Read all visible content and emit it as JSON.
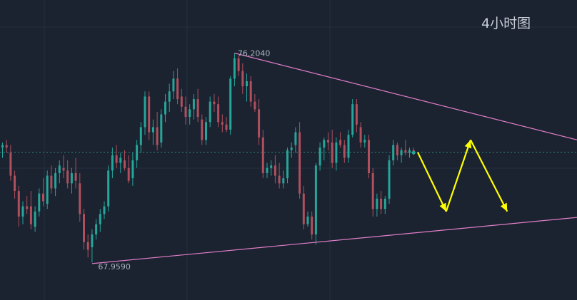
{
  "header": {
    "timeframe_label": "4小时图"
  },
  "colors": {
    "background": "#1b2230",
    "grid": "#26303f",
    "up_candle": "#26a69a",
    "down_candle": "#b0505e",
    "trendline": "#e07fc8",
    "projection_arrow": "#ffff00",
    "price_line": "#2e8b7c",
    "label_text": "#aab3bf"
  },
  "chart_data": {
    "type": "candlestick",
    "title": "",
    "timeframe": "4小时图",
    "ylim": [
      66.7,
      78.0
    ],
    "price_labels": {
      "high": "76.2040",
      "low": "67.9590"
    },
    "current_price": 72.32,
    "grid": true,
    "ohlc": [
      [
        72.5,
        72.7,
        72.1,
        72.6
      ],
      [
        72.6,
        72.8,
        72.3,
        72.5
      ],
      [
        72.3,
        72.6,
        71.2,
        71.4
      ],
      [
        71.4,
        71.6,
        70.5,
        70.8
      ],
      [
        70.8,
        71.0,
        69.4,
        69.8
      ],
      [
        69.8,
        70.4,
        69.5,
        70.2
      ],
      [
        70.2,
        70.6,
        69.9,
        70.1
      ],
      [
        70.2,
        70.8,
        69.3,
        69.5
      ],
      [
        69.4,
        70.2,
        69.2,
        70.0
      ],
      [
        70.0,
        70.9,
        69.8,
        70.7
      ],
      [
        70.7,
        71.3,
        70.2,
        70.4
      ],
      [
        70.3,
        71.6,
        70.1,
        71.4
      ],
      [
        71.4,
        71.8,
        70.7,
        70.9
      ],
      [
        70.9,
        71.7,
        70.6,
        71.5
      ],
      [
        71.5,
        72.0,
        71.1,
        71.8
      ],
      [
        71.7,
        72.2,
        71.3,
        71.6
      ],
      [
        71.6,
        72.0,
        70.9,
        71.1
      ],
      [
        71.1,
        71.7,
        70.7,
        71.5
      ],
      [
        71.5,
        72.1,
        70.9,
        71.2
      ],
      [
        71.1,
        71.5,
        69.6,
        69.9
      ],
      [
        69.9,
        70.1,
        68.5,
        68.8
      ],
      [
        68.8,
        69.1,
        68.2,
        68.5
      ],
      [
        68.6,
        69.3,
        68.0,
        69.1
      ],
      [
        69.1,
        69.7,
        68.9,
        69.5
      ],
      [
        69.5,
        70.1,
        69.2,
        69.9
      ],
      [
        69.9,
        70.4,
        69.7,
        70.2
      ],
      [
        70.2,
        71.8,
        70.0,
        71.6
      ],
      [
        71.6,
        72.5,
        71.3,
        72.2
      ],
      [
        72.2,
        72.6,
        71.7,
        71.9
      ],
      [
        71.9,
        72.3,
        71.5,
        72.1
      ],
      [
        72.0,
        72.4,
        71.6,
        71.7
      ],
      [
        71.7,
        72.2,
        71.1,
        71.2
      ],
      [
        71.3,
        72.3,
        71.0,
        72.0
      ],
      [
        72.0,
        72.8,
        71.7,
        72.6
      ],
      [
        72.6,
        73.5,
        72.3,
        73.3
      ],
      [
        73.3,
        74.7,
        73.0,
        74.5
      ],
      [
        74.5,
        74.7,
        72.8,
        73.1
      ],
      [
        73.1,
        73.6,
        72.6,
        73.3
      ],
      [
        73.3,
        73.9,
        72.4,
        72.6
      ],
      [
        72.7,
        74.0,
        72.5,
        73.8
      ],
      [
        73.8,
        74.6,
        73.5,
        74.3
      ],
      [
        74.3,
        75.0,
        73.9,
        74.7
      ],
      [
        74.7,
        75.5,
        74.4,
        75.2
      ],
      [
        75.2,
        75.6,
        74.2,
        74.4
      ],
      [
        74.5,
        74.8,
        73.9,
        74.1
      ],
      [
        74.1,
        74.5,
        73.4,
        73.7
      ],
      [
        73.7,
        74.2,
        73.4,
        74.0
      ],
      [
        74.0,
        74.6,
        73.6,
        74.4
      ],
      [
        74.4,
        74.8,
        73.5,
        73.7
      ],
      [
        73.6,
        73.8,
        72.6,
        72.8
      ],
      [
        72.8,
        73.7,
        72.6,
        73.5
      ],
      [
        73.5,
        74.5,
        73.3,
        74.3
      ],
      [
        74.3,
        74.6,
        73.9,
        74.2
      ],
      [
        74.2,
        74.5,
        73.3,
        73.5
      ],
      [
        73.5,
        73.8,
        73.1,
        73.4
      ],
      [
        73.4,
        73.7,
        73.1,
        73.2
      ],
      [
        73.2,
        75.3,
        73.0,
        75.2
      ],
      [
        75.2,
        76.2,
        74.9,
        76.0
      ],
      [
        76.0,
        76.1,
        75.3,
        75.5
      ],
      [
        75.5,
        75.8,
        74.6,
        74.9
      ],
      [
        74.9,
        75.4,
        74.3,
        75.1
      ],
      [
        75.1,
        75.3,
        74.1,
        74.3
      ],
      [
        74.3,
        74.6,
        73.9,
        74.0
      ],
      [
        74.0,
        74.4,
        72.6,
        72.9
      ],
      [
        72.9,
        73.2,
        71.3,
        71.5
      ],
      [
        71.5,
        71.9,
        71.3,
        71.7
      ],
      [
        71.7,
        72.0,
        71.4,
        71.8
      ],
      [
        71.8,
        72.2,
        71.1,
        71.4
      ],
      [
        71.4,
        71.9,
        70.9,
        71.1
      ],
      [
        71.1,
        71.6,
        70.9,
        71.3
      ],
      [
        71.3,
        72.5,
        71.1,
        72.4
      ],
      [
        72.4,
        72.7,
        72.1,
        72.5
      ],
      [
        72.6,
        73.3,
        72.3,
        73.1
      ],
      [
        73.1,
        73.5,
        70.5,
        70.7
      ],
      [
        70.7,
        71.0,
        69.3,
        69.5
      ],
      [
        69.5,
        70.0,
        69.4,
        69.8
      ],
      [
        69.8,
        70.0,
        68.9,
        69.1
      ],
      [
        69.1,
        71.9,
        68.7,
        71.8
      ],
      [
        71.8,
        72.7,
        71.6,
        72.5
      ],
      [
        72.5,
        72.9,
        72.0,
        72.8
      ],
      [
        72.8,
        73.1,
        72.4,
        72.7
      ],
      [
        72.7,
        73.2,
        71.7,
        71.9
      ],
      [
        71.9,
        72.9,
        71.6,
        72.7
      ],
      [
        72.8,
        73.1,
        72.5,
        72.6
      ],
      [
        72.6,
        72.8,
        71.9,
        72.1
      ],
      [
        72.1,
        73.2,
        71.9,
        73.0
      ],
      [
        73.0,
        74.4,
        72.9,
        74.2
      ],
      [
        74.2,
        74.4,
        73.1,
        73.4
      ],
      [
        73.3,
        73.5,
        72.5,
        72.7
      ],
      [
        72.7,
        73.0,
        72.5,
        72.8
      ],
      [
        72.8,
        73.0,
        71.3,
        71.5
      ],
      [
        71.5,
        71.7,
        69.8,
        70.1
      ],
      [
        70.1,
        70.7,
        69.8,
        70.5
      ],
      [
        70.5,
        70.8,
        69.9,
        70.1
      ],
      [
        70.1,
        70.6,
        69.9,
        70.5
      ],
      [
        70.5,
        72.2,
        70.3,
        72.0
      ],
      [
        72.0,
        72.8,
        71.8,
        72.6
      ],
      [
        72.6,
        72.7,
        72.0,
        72.2
      ],
      [
        72.2,
        72.5,
        71.9,
        72.4
      ],
      [
        72.4,
        72.8,
        72.2,
        72.3
      ],
      [
        72.3,
        72.5,
        72.1,
        72.4
      ],
      [
        72.4,
        72.5,
        72.2,
        72.3
      ]
    ],
    "trendlines": [
      {
        "name": "upper",
        "from": [
          57,
          76.2
        ],
        "to": [
          162,
          71.96
        ]
      },
      {
        "name": "lower",
        "from": [
          22,
          67.96
        ],
        "to": [
          150,
          69.9
        ]
      }
    ],
    "projection_path": [
      [
        102,
        72.32
      ],
      [
        109,
        70.0
      ],
      [
        115,
        72.8
      ],
      [
        124,
        70.0
      ]
    ]
  }
}
